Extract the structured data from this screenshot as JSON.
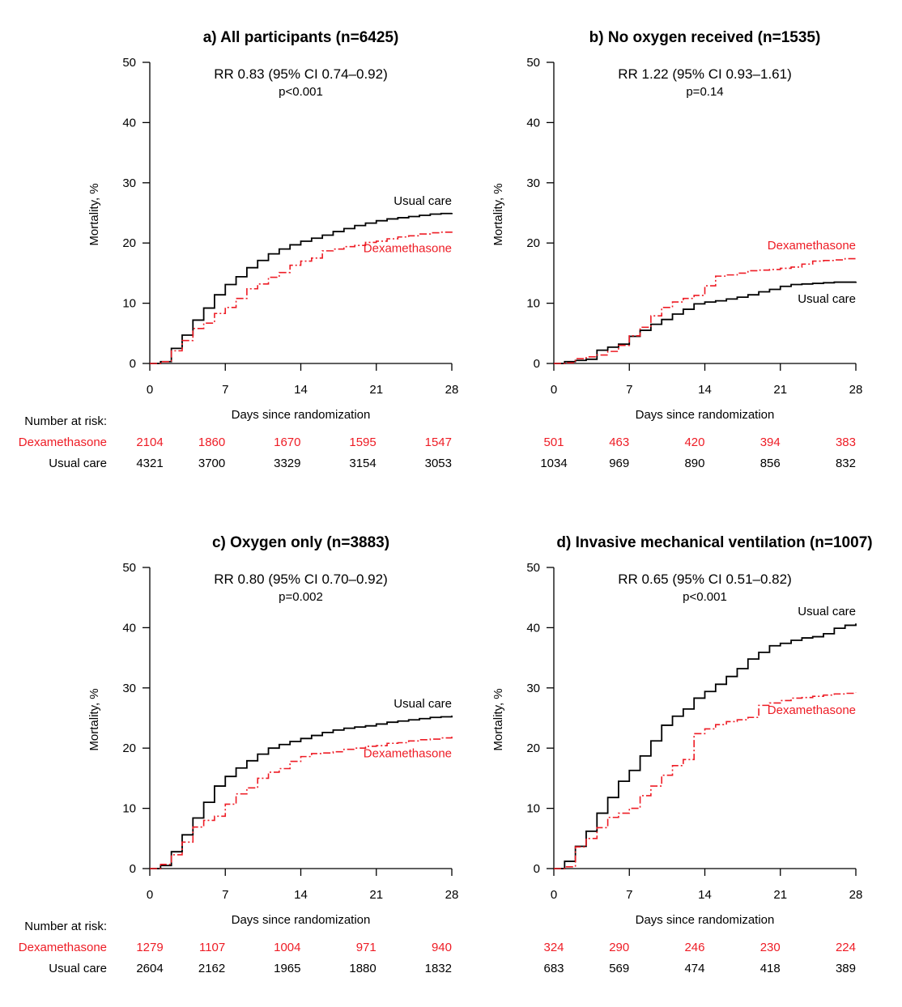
{
  "colors": {
    "dexamethasone": "#ee1c25",
    "usual_care": "#000000"
  },
  "risk_table_label": "Number at risk:",
  "chart_data": [
    {
      "type": "line",
      "step": true,
      "title": "a) All participants (n=6425)",
      "stat_text": "RR 0.83 (95% CI 0.74–0.92)",
      "p_text": "p<0.001",
      "xlabel": "Days since randomization",
      "ylabel": "Mortality, %",
      "xlim": [
        0,
        28
      ],
      "ylim": [
        0,
        50
      ],
      "xticks": [
        0,
        7,
        14,
        21,
        28
      ],
      "yticks": [
        0,
        10,
        20,
        30,
        40,
        50
      ],
      "grid": false,
      "series": [
        {
          "name": "Usual care",
          "label_position": "above-end",
          "x": [
            0,
            1,
            2,
            3,
            4,
            5,
            6,
            7,
            8,
            9,
            10,
            11,
            12,
            13,
            14,
            15,
            16,
            17,
            18,
            19,
            20,
            21,
            22,
            23,
            24,
            25,
            26,
            27,
            28
          ],
          "y": [
            0,
            0.3,
            2.5,
            4.7,
            7.2,
            9.2,
            11.4,
            13.1,
            14.4,
            15.9,
            17.1,
            18.2,
            19.0,
            19.7,
            20.3,
            20.8,
            21.3,
            21.9,
            22.4,
            22.9,
            23.3,
            23.7,
            24.0,
            24.2,
            24.4,
            24.6,
            24.8,
            24.9,
            25.0
          ]
        },
        {
          "name": "Dexamethasone",
          "label_position": "below-end",
          "x": [
            0,
            1,
            2,
            3,
            4,
            5,
            6,
            7,
            8,
            9,
            10,
            11,
            12,
            13,
            14,
            15,
            16,
            17,
            18,
            19,
            20,
            21,
            22,
            23,
            24,
            25,
            26,
            27,
            28
          ],
          "y": [
            0,
            0.3,
            2.1,
            3.8,
            5.8,
            6.7,
            8.3,
            9.3,
            10.8,
            12.4,
            13.2,
            14.3,
            15.1,
            16.3,
            17.0,
            17.5,
            18.7,
            19.0,
            19.4,
            19.6,
            20.1,
            20.3,
            20.7,
            21.0,
            21.2,
            21.5,
            21.7,
            21.8,
            22.0
          ]
        }
      ],
      "risk_table": {
        "times": [
          0,
          7,
          14,
          21,
          28
        ],
        "rows": [
          {
            "name": "Dexamethasone",
            "values": [
              "2104",
              "1860",
              "1670",
              "1595",
              "1547"
            ]
          },
          {
            "name": "Usual care",
            "values": [
              "4321",
              "3700",
              "3329",
              "3154",
              "3053"
            ]
          }
        ]
      }
    },
    {
      "type": "line",
      "step": true,
      "title": "b) No oxygen received (n=1535)",
      "stat_text": "RR 1.22 (95% CI 0.93–1.61)",
      "p_text": "p=0.14",
      "xlabel": "Days since randomization",
      "ylabel": "Mortality, %",
      "xlim": [
        0,
        28
      ],
      "ylim": [
        0,
        50
      ],
      "xticks": [
        0,
        7,
        14,
        21,
        28
      ],
      "yticks": [
        0,
        10,
        20,
        30,
        40,
        50
      ],
      "grid": false,
      "series": [
        {
          "name": "Usual care",
          "label_position": "below-end",
          "x": [
            0,
            1,
            2,
            3,
            4,
            5,
            6,
            7,
            8,
            9,
            10,
            11,
            12,
            13,
            14,
            15,
            16,
            17,
            18,
            19,
            20,
            21,
            22,
            23,
            24,
            25,
            26,
            27,
            28
          ],
          "y": [
            0,
            0.3,
            0.5,
            0.7,
            2.2,
            2.7,
            3.2,
            4.5,
            5.5,
            6.5,
            7.3,
            8.2,
            9.0,
            9.9,
            10.2,
            10.4,
            10.7,
            11.0,
            11.4,
            11.9,
            12.3,
            12.8,
            13.1,
            13.2,
            13.3,
            13.4,
            13.5,
            13.5,
            13.6
          ]
        },
        {
          "name": "Dexamethasone",
          "label_position": "above-end",
          "x": [
            0,
            1,
            2,
            3,
            4,
            5,
            6,
            7,
            8,
            9,
            10,
            11,
            12,
            13,
            14,
            15,
            16,
            17,
            18,
            19,
            20,
            21,
            22,
            23,
            24,
            25,
            26,
            27,
            28
          ],
          "y": [
            0,
            0.1,
            0.8,
            1.1,
            1.4,
            2.0,
            3.0,
            4.6,
            6.0,
            7.9,
            9.3,
            10.2,
            10.8,
            11.3,
            12.9,
            14.5,
            14.7,
            15.0,
            15.4,
            15.5,
            15.6,
            15.8,
            16.0,
            16.5,
            17.0,
            17.1,
            17.2,
            17.4,
            17.6
          ]
        }
      ],
      "risk_table": {
        "times": [
          0,
          7,
          14,
          21,
          28
        ],
        "rows": [
          {
            "name": "Dexamethasone",
            "values": [
              "501",
              "463",
              "420",
              "394",
              "383"
            ]
          },
          {
            "name": "Usual care",
            "values": [
              "1034",
              "969",
              "890",
              "856",
              "832"
            ]
          }
        ]
      }
    },
    {
      "type": "line",
      "step": true,
      "title": "c) Oxygen only (n=3883)",
      "stat_text": "RR 0.80 (95% CI 0.70–0.92)",
      "p_text": "p=0.002",
      "xlabel": "Days since randomization",
      "ylabel": "Mortality, %",
      "xlim": [
        0,
        28
      ],
      "ylim": [
        0,
        50
      ],
      "xticks": [
        0,
        7,
        14,
        21,
        28
      ],
      "yticks": [
        0,
        10,
        20,
        30,
        40,
        50
      ],
      "grid": false,
      "series": [
        {
          "name": "Usual care",
          "label_position": "above-end",
          "x": [
            0,
            1,
            2,
            3,
            4,
            5,
            6,
            7,
            8,
            9,
            10,
            11,
            12,
            13,
            14,
            15,
            16,
            17,
            18,
            19,
            20,
            21,
            22,
            23,
            24,
            25,
            26,
            27,
            28
          ],
          "y": [
            0,
            0.5,
            2.8,
            5.6,
            8.4,
            11.0,
            13.7,
            15.3,
            16.7,
            17.9,
            19.0,
            20.0,
            20.6,
            21.1,
            21.6,
            22.1,
            22.6,
            23.0,
            23.3,
            23.5,
            23.7,
            24.0,
            24.3,
            24.5,
            24.7,
            24.9,
            25.1,
            25.2,
            25.4
          ]
        },
        {
          "name": "Dexamethasone",
          "label_position": "below-end",
          "x": [
            0,
            1,
            2,
            3,
            4,
            5,
            6,
            7,
            8,
            9,
            10,
            11,
            12,
            13,
            14,
            15,
            16,
            17,
            18,
            19,
            20,
            21,
            22,
            23,
            24,
            25,
            26,
            27,
            28
          ],
          "y": [
            0,
            0.7,
            2.3,
            4.4,
            6.9,
            8.0,
            8.7,
            10.7,
            12.4,
            13.4,
            15.0,
            16.0,
            16.6,
            17.8,
            18.6,
            19.1,
            19.2,
            19.4,
            19.8,
            20.0,
            20.3,
            20.4,
            20.8,
            20.9,
            21.2,
            21.4,
            21.5,
            21.7,
            22.0
          ]
        }
      ],
      "risk_table": {
        "times": [
          0,
          7,
          14,
          21,
          28
        ],
        "rows": [
          {
            "name": "Dexamethasone",
            "values": [
              "1279",
              "1107",
              "1004",
              "971",
              "940"
            ]
          },
          {
            "name": "Usual care",
            "values": [
              "2604",
              "2162",
              "1965",
              "1880",
              "1832"
            ]
          }
        ]
      }
    },
    {
      "type": "line",
      "step": true,
      "title": "d) Invasive mechanical ventilation (n=1007)",
      "stat_text": "RR 0.65 (95% CI 0.51–0.82)",
      "p_text": "p<0.001",
      "xlabel": "Days since randomization",
      "ylabel": "Mortality, %",
      "xlim": [
        0,
        28
      ],
      "ylim": [
        0,
        50
      ],
      "xticks": [
        0,
        7,
        14,
        21,
        28
      ],
      "yticks": [
        0,
        10,
        20,
        30,
        40,
        50
      ],
      "grid": false,
      "series": [
        {
          "name": "Usual care",
          "label_position": "above-end",
          "x": [
            0,
            1,
            2,
            3,
            4,
            5,
            6,
            7,
            8,
            9,
            10,
            11,
            12,
            13,
            14,
            15,
            16,
            17,
            18,
            19,
            20,
            21,
            22,
            23,
            24,
            25,
            26,
            27,
            28
          ],
          "y": [
            0,
            1.2,
            3.7,
            6.2,
            9.2,
            11.8,
            14.5,
            16.3,
            18.7,
            21.2,
            23.8,
            25.3,
            26.5,
            28.3,
            29.4,
            30.6,
            31.9,
            33.2,
            34.8,
            35.9,
            37.0,
            37.4,
            37.9,
            38.3,
            38.5,
            39.0,
            39.9,
            40.4,
            40.7
          ]
        },
        {
          "name": "Dexamethasone",
          "label_position": "below-end",
          "x": [
            0,
            1,
            2,
            3,
            4,
            5,
            6,
            7,
            8,
            9,
            10,
            11,
            12,
            13,
            14,
            15,
            16,
            17,
            18,
            19,
            20,
            21,
            22,
            23,
            24,
            25,
            26,
            27,
            28
          ],
          "y": [
            0,
            0.3,
            3.6,
            5.0,
            6.8,
            8.5,
            9.2,
            10.0,
            12.1,
            13.7,
            15.5,
            17.1,
            18.1,
            22.4,
            23.2,
            23.9,
            24.4,
            24.7,
            25.1,
            27.1,
            27.5,
            27.9,
            28.3,
            28.4,
            28.6,
            28.8,
            29.0,
            29.1,
            29.2
          ]
        }
      ],
      "risk_table": {
        "times": [
          0,
          7,
          14,
          21,
          28
        ],
        "rows": [
          {
            "name": "Dexamethasone",
            "values": [
              "324",
              "290",
              "246",
              "230",
              "224"
            ]
          },
          {
            "name": "Usual care",
            "values": [
              "683",
              "569",
              "474",
              "418",
              "389"
            ]
          }
        ]
      }
    }
  ]
}
